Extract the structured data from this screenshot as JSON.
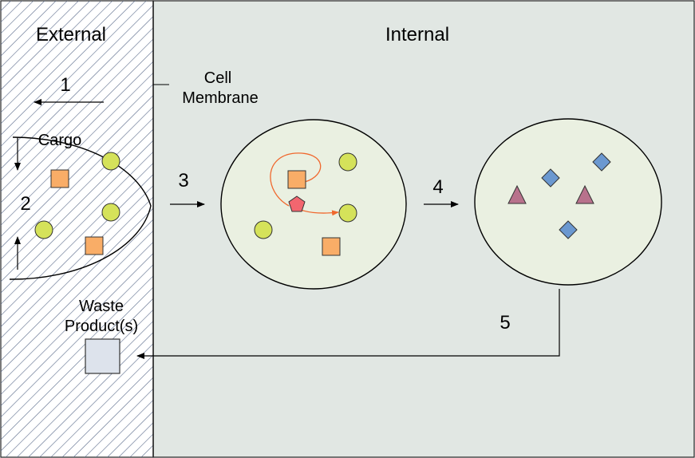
{
  "regions": {
    "external_label": "External",
    "internal_label": "Internal"
  },
  "labels": {
    "membrane_line1": "Cell",
    "membrane_line2": "Membrane",
    "cargo": "Cargo",
    "waste_line1": "Waste",
    "waste_line2": "Product(s)"
  },
  "steps": [
    "1",
    "2",
    "3",
    "4",
    "5"
  ],
  "colors": {
    "external_hatch": "#5a6a8a",
    "internal_bg": "#e1e7e3",
    "vesicle_fill": "#eaf0e1",
    "circle_fill": "#d5e25a",
    "square_fill": "#f9ad67",
    "pentagon_fill": "#f2666f",
    "triangle_fill": "#b8728c",
    "diamond_fill": "#6b98d0",
    "waste_fill": "#dde3ec",
    "path_arrow": "#f0682e"
  }
}
